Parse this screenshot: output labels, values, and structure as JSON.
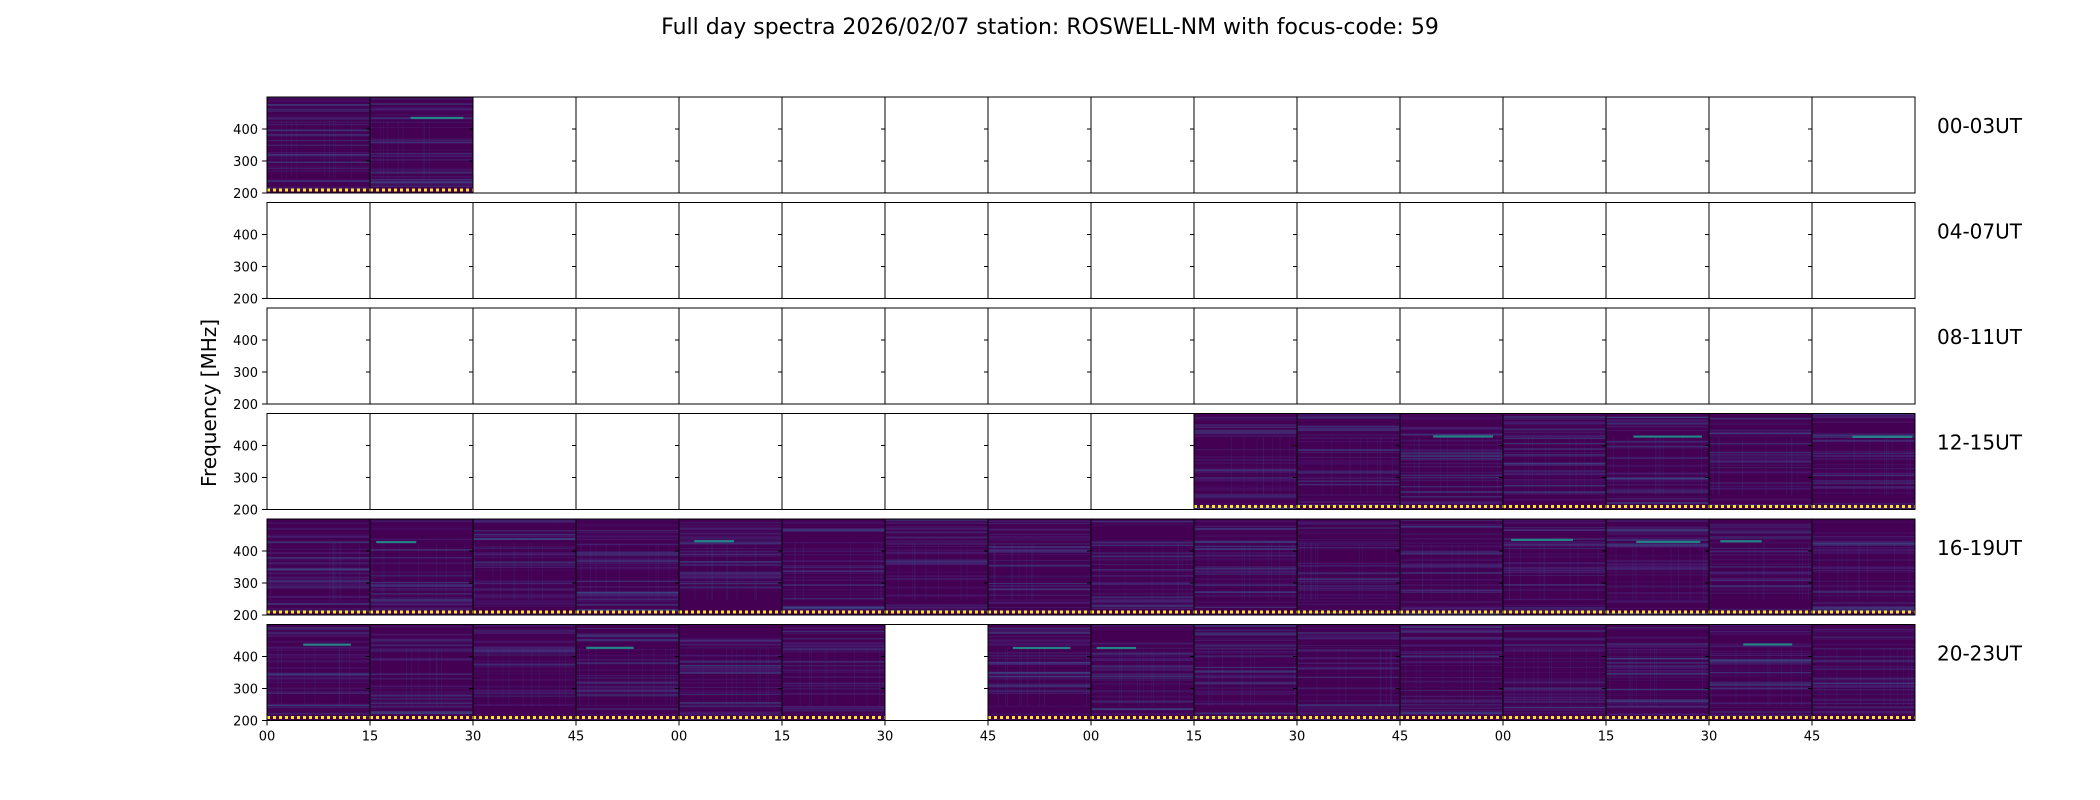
{
  "chart_data": {
    "type": "heatmap",
    "title": "Full day spectra 2026/02/07 station: ROSWELL-NM with focus-code: 59",
    "ylabel": "Frequency [MHz]",
    "xlabel": "",
    "ylim": [
      200,
      500
    ],
    "y_ticks": [
      "200",
      "300",
      "400"
    ],
    "x_ticks": [
      "00",
      "15",
      "30",
      "45",
      "00",
      "15",
      "30",
      "45",
      "00",
      "15",
      "30",
      "45",
      "00",
      "15",
      "30",
      "45"
    ],
    "colormap": [
      "#440154",
      "#3b528b",
      "#21918c",
      "#5ec962",
      "#fde725"
    ],
    "rows": [
      {
        "label": "00-03UT",
        "panels": [
          1,
          1,
          0,
          0,
          0,
          0,
          0,
          0,
          0,
          0,
          0,
          0,
          0,
          0,
          0,
          0
        ]
      },
      {
        "label": "04-07UT",
        "panels": [
          0,
          0,
          0,
          0,
          0,
          0,
          0,
          0,
          0,
          0,
          0,
          0,
          0,
          0,
          0,
          0
        ]
      },
      {
        "label": "08-11UT",
        "panels": [
          0,
          0,
          0,
          0,
          0,
          0,
          0,
          0,
          0,
          0,
          0,
          0,
          0,
          0,
          0,
          0
        ]
      },
      {
        "label": "12-15UT",
        "panels": [
          0,
          0,
          0,
          0,
          0,
          0,
          0,
          0,
          0,
          1,
          1,
          1,
          1,
          1,
          1,
          1
        ]
      },
      {
        "label": "16-19UT",
        "panels": [
          1,
          1,
          1,
          1,
          1,
          1,
          1,
          1,
          1,
          1,
          1,
          1,
          1,
          1,
          1,
          1
        ]
      },
      {
        "label": "20-23UT",
        "panels": [
          1,
          1,
          1,
          1,
          1,
          1,
          0,
          1,
          1,
          1,
          1,
          1,
          1,
          1,
          1,
          1
        ]
      }
    ]
  }
}
